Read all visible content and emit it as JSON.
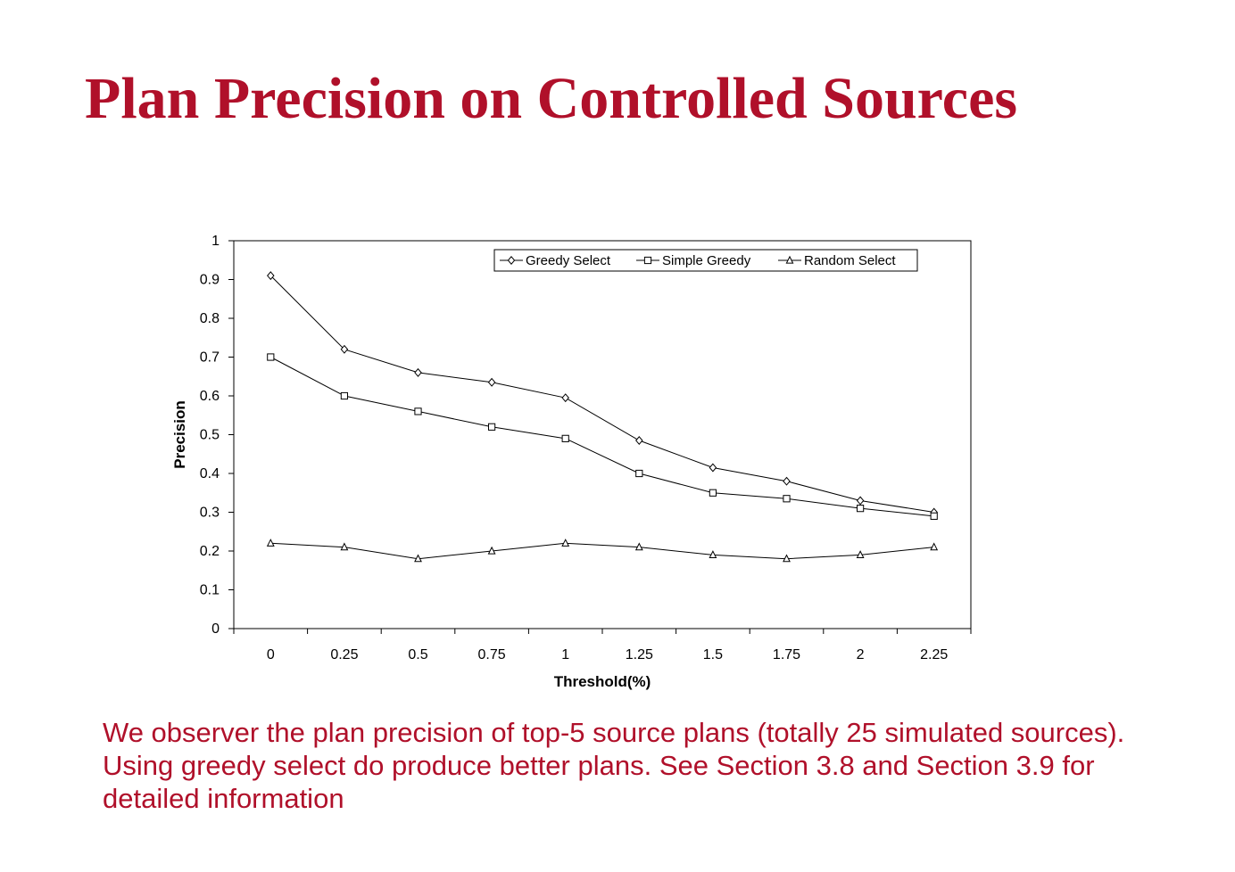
{
  "slide": {
    "title": "Plan Precision on Controlled Sources",
    "caption": "We observer the plan precision of top-5 source plans (totally 25 simulated sources). Using greedy select do produce better plans. See Section 3.8 and Section 3.9 for detailed information",
    "accent_color": "#b0102a"
  },
  "chart_data": {
    "type": "line",
    "xlabel": "Threshold(%)",
    "ylabel": "Precision",
    "categories": [
      "0",
      "0.25",
      "0.5",
      "0.75",
      "1",
      "1.25",
      "1.5",
      "1.75",
      "2",
      "2.25"
    ],
    "ylim": [
      0,
      1
    ],
    "yticks": [
      "0",
      "0.1",
      "0.2",
      "0.3",
      "0.4",
      "0.5",
      "0.6",
      "0.7",
      "0.8",
      "0.9",
      "1"
    ],
    "grid": false,
    "legend_position": "top-right",
    "series": [
      {
        "name": "Greedy Select",
        "marker": "diamond",
        "color": "#000000",
        "values": [
          0.91,
          0.72,
          0.66,
          0.635,
          0.595,
          0.485,
          0.415,
          0.38,
          0.33,
          0.3
        ]
      },
      {
        "name": "Simple Greedy",
        "marker": "square",
        "color": "#000000",
        "values": [
          0.7,
          0.6,
          0.56,
          0.52,
          0.49,
          0.4,
          0.35,
          0.335,
          0.31,
          0.29
        ]
      },
      {
        "name": "Random Select",
        "marker": "triangle",
        "color": "#000000",
        "values": [
          0.22,
          0.21,
          0.18,
          0.2,
          0.22,
          0.21,
          0.19,
          0.18,
          0.19,
          0.21
        ]
      }
    ]
  }
}
